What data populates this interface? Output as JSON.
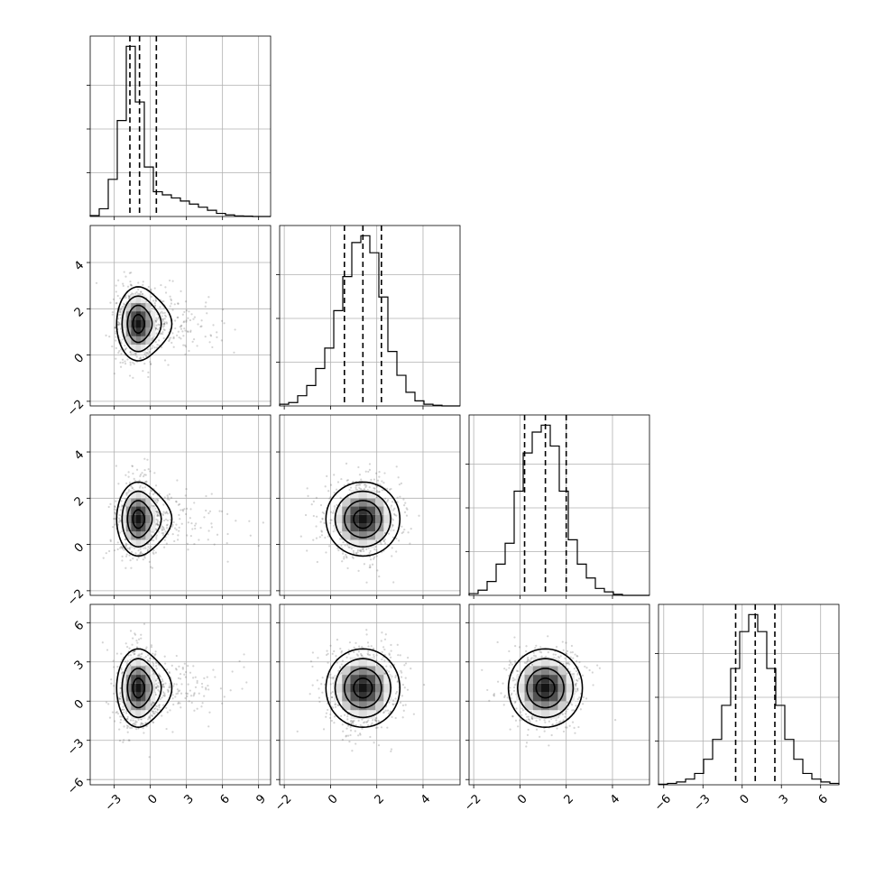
{
  "chart_data": {
    "type": "corner",
    "parameters": 4,
    "grid_visible": true,
    "ranges": [
      [
        -5,
        10
      ],
      [
        -2.2,
        5.6
      ],
      [
        -2.2,
        5.6
      ],
      [
        -6.4,
        7.4
      ]
    ],
    "ticks": [
      [
        -3,
        0,
        3,
        6,
        9
      ],
      [
        -2,
        0,
        2,
        4
      ],
      [
        -2,
        0,
        2,
        4
      ],
      [
        -6,
        -3,
        0,
        3,
        6
      ]
    ],
    "tick_labels": [
      [
        "−3",
        "0",
        "3",
        "6",
        "9"
      ],
      [
        "−2",
        "0",
        "2",
        "4"
      ],
      [
        "−2",
        "0",
        "2",
        "4"
      ],
      [
        "−6",
        "−3",
        "0",
        "3",
        "6"
      ]
    ],
    "histograms": [
      {
        "bin_edges": [
          -5,
          -4.25,
          -3.5,
          -2.75,
          -2,
          -1.25,
          -0.5,
          0.25,
          1,
          1.75,
          2.5,
          3.25,
          4,
          4.75,
          5.5,
          6.25,
          7,
          7.75,
          8.5,
          9.25,
          10
        ],
        "counts": [
          0.3,
          2.5,
          12,
          31,
          55,
          37,
          16,
          8,
          7,
          6,
          5,
          4,
          3,
          2,
          1,
          0.5,
          0.2,
          0.1,
          0,
          0
        ],
        "quantiles": [
          -1.7,
          -0.9,
          0.5
        ]
      },
      {
        "bin_edges": [
          -2.2,
          -1.81,
          -1.42,
          -1.03,
          -0.64,
          -0.25,
          0.14,
          0.53,
          0.92,
          1.31,
          1.7,
          2.09,
          2.48,
          2.87,
          3.26,
          3.65,
          4.04,
          4.43,
          4.82,
          5.21,
          5.6
        ],
        "counts": [
          0.5,
          1,
          3,
          6,
          11,
          17,
          28,
          38,
          48,
          50,
          45,
          32,
          16,
          9,
          4,
          1.5,
          0.5,
          0.2,
          0,
          0
        ],
        "quantiles": [
          0.6,
          1.4,
          2.2
        ]
      },
      {
        "bin_edges": [
          -2.2,
          -1.81,
          -1.42,
          -1.03,
          -0.64,
          -0.25,
          0.14,
          0.53,
          0.92,
          1.31,
          1.7,
          2.09,
          2.48,
          2.87,
          3.26,
          3.65,
          4.04,
          4.43,
          4.82,
          5.21,
          5.6
        ],
        "counts": [
          0.5,
          1.5,
          4,
          9,
          15,
          30,
          41,
          47,
          49,
          43,
          30,
          16,
          9,
          5,
          2,
          1,
          0.3,
          0,
          0,
          0
        ],
        "quantiles": [
          0.2,
          1.1,
          2.0
        ]
      },
      {
        "bin_edges": [
          -6.4,
          -5.71,
          -5.02,
          -4.33,
          -3.64,
          -2.95,
          -2.26,
          -1.57,
          -0.88,
          -0.19,
          0.5,
          1.19,
          1.88,
          2.57,
          3.26,
          3.95,
          4.64,
          5.33,
          6.02,
          6.71,
          7.4
        ],
        "counts": [
          0.2,
          0.5,
          1,
          2,
          4,
          9,
          16,
          28,
          41,
          54,
          60,
          54,
          41,
          28,
          16,
          9,
          4,
          2,
          1,
          0.5
        ],
        "quantiles": [
          -0.5,
          1.0,
          2.5
        ]
      }
    ],
    "pairs": [
      {
        "row": 1,
        "col": 0,
        "mean": [
          -1.0,
          1.35
        ],
        "sigma": [
          0.9,
          0.8
        ],
        "skew_tail": [
          2.0,
          1.5
        ]
      },
      {
        "row": 2,
        "col": 0,
        "mean": [
          -1.0,
          1.1
        ],
        "sigma": [
          0.9,
          0.8
        ],
        "skew_tail": [
          2.0,
          1.5
        ]
      },
      {
        "row": 2,
        "col": 1,
        "mean": [
          1.4,
          1.1
        ],
        "sigma": [
          0.8,
          0.8
        ],
        "skew_tail": [
          0,
          0
        ]
      },
      {
        "row": 3,
        "col": 0,
        "mean": [
          -1.0,
          1.0
        ],
        "sigma": [
          0.9,
          1.5
        ],
        "skew_tail": [
          2.0,
          1.5
        ]
      },
      {
        "row": 3,
        "col": 1,
        "mean": [
          1.4,
          1.0
        ],
        "sigma": [
          0.8,
          1.5
        ],
        "skew_tail": [
          0,
          0
        ]
      },
      {
        "row": 3,
        "col": 2,
        "mean": [
          1.1,
          1.0
        ],
        "sigma": [
          0.8,
          1.5
        ],
        "skew_tail": [
          0,
          0
        ]
      }
    ],
    "contour_levels_sigma": [
      0.5,
      1.0,
      1.5,
      2.0
    ],
    "colors": {
      "contour": "#000000",
      "scatter": "#555555",
      "grid": "#b0b0b0",
      "hist": "#000000",
      "density_dark": "#000000"
    }
  }
}
